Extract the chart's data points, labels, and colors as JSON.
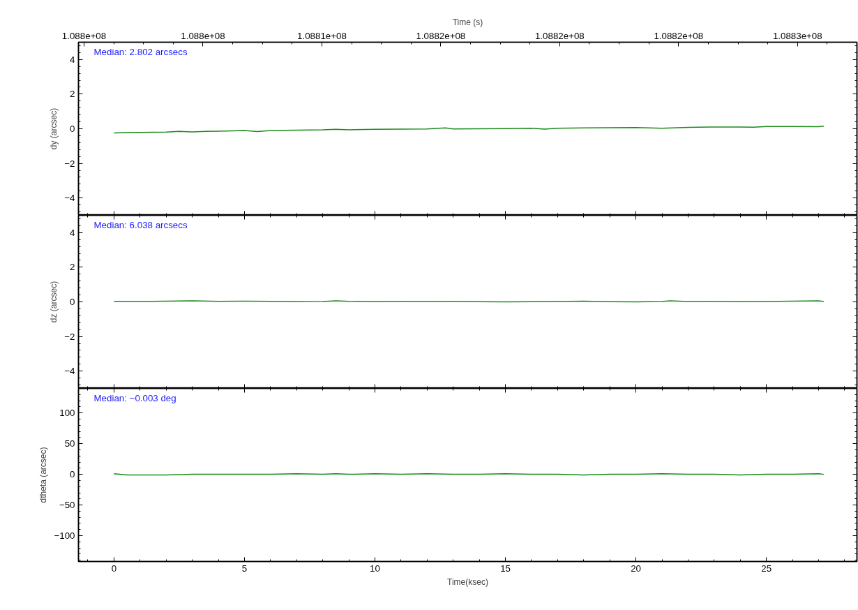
{
  "chart_data": [
    {
      "type": "line",
      "ylabel": "dy (arcsec)",
      "x2label": "Time (s)",
      "annotations": [
        "Median: 2.802 arcsecs"
      ],
      "xlim": [
        -1.36,
        28.47
      ],
      "xticks": [
        0,
        5,
        10,
        15,
        20,
        25
      ],
      "ylim": [
        -5,
        5
      ],
      "yticks": [
        -4,
        -2,
        0,
        2,
        4
      ],
      "x2lim": [
        108799765,
        108832500
      ],
      "x2ticks": [
        {
          "value": 108800000,
          "label": "1.088e+08"
        },
        {
          "value": 108805000,
          "label": "1.088e+08"
        },
        {
          "value": 108810000,
          "label": "1.0881e+08"
        },
        {
          "value": 108815000,
          "label": "1.0882e+08"
        },
        {
          "value": 108820000,
          "label": "1.0882e+08"
        },
        {
          "value": 108825000,
          "label": "1.0882e+08"
        },
        {
          "value": 108830000,
          "label": "1.0883e+08"
        }
      ],
      "tick_labels": "y",
      "grid": false,
      "marker": "none",
      "line_style": "solid",
      "x": [
        0,
        0.5,
        1,
        1.5,
        2,
        2.5,
        3,
        3.5,
        4,
        4.5,
        5,
        5.5,
        6,
        7,
        8,
        8.5,
        9,
        10,
        11,
        12,
        12.7,
        13,
        14,
        15,
        16,
        16.5,
        17,
        18,
        19,
        20,
        21,
        22,
        23,
        24,
        24.5,
        25,
        26,
        27,
        27.2
      ],
      "series": [
        {
          "color": "#1a8a1a",
          "values": [
            -0.24,
            -0.22,
            -0.21,
            -0.2,
            -0.19,
            -0.15,
            -0.18,
            -0.15,
            -0.14,
            -0.12,
            -0.1,
            -0.16,
            -0.1,
            -0.08,
            -0.06,
            -0.03,
            -0.06,
            -0.03,
            -0.02,
            -0.01,
            0.05,
            -0.01,
            0.0,
            0.01,
            0.03,
            -0.02,
            0.03,
            0.05,
            0.06,
            0.07,
            0.03,
            0.08,
            0.1,
            0.1,
            0.09,
            0.13,
            0.13,
            0.12,
            0.15
          ]
        }
      ]
    },
    {
      "type": "line",
      "ylabel": "dz (arcsec)",
      "annotations": [
        "Median: 6.038 arcsecs"
      ],
      "xlim": [
        -1.36,
        28.47
      ],
      "xticks": [
        0,
        5,
        10,
        15,
        20,
        25
      ],
      "ylim": [
        -5,
        5
      ],
      "yticks": [
        -4,
        -2,
        0,
        2,
        4
      ],
      "tick_labels": "y",
      "grid": false,
      "marker": "none",
      "line_style": "solid",
      "x": [
        0,
        1,
        2,
        3,
        4,
        5,
        6,
        7,
        8,
        8.5,
        9,
        10,
        11,
        12,
        13,
        14,
        15,
        16,
        17,
        18,
        19,
        20,
        21,
        21.3,
        22,
        23,
        24,
        25,
        26,
        27,
        27.2
      ],
      "series": [
        {
          "color": "#1a8a1a",
          "values": [
            0.02,
            0.02,
            0.04,
            0.06,
            0.03,
            0.04,
            0.03,
            0.01,
            0.02,
            0.06,
            0.03,
            0.01,
            0.03,
            0.02,
            0.03,
            0.01,
            0.0,
            0.01,
            0.02,
            0.04,
            0.01,
            0.0,
            0.02,
            0.06,
            0.02,
            0.03,
            0.01,
            0.02,
            0.04,
            0.06,
            0.02
          ]
        }
      ]
    },
    {
      "type": "line",
      "ylabel": "dtheta (arcsec)",
      "xlabel": "Time(ksec)",
      "annotations": [
        "Median: −0.003 deg"
      ],
      "xlim": [
        -1.36,
        28.47
      ],
      "xticks": [
        0,
        5,
        10,
        15,
        20,
        25
      ],
      "ylim": [
        -142,
        140
      ],
      "yticks": [
        -100,
        -50,
        0,
        50,
        100
      ],
      "grid": false,
      "marker": "none",
      "line_style": "solid",
      "x": [
        0,
        0.5,
        1,
        2,
        3,
        4,
        5,
        6,
        7,
        8,
        8.5,
        9,
        10,
        11,
        12,
        13,
        14,
        15,
        16,
        17,
        18,
        19,
        20,
        21,
        22,
        23,
        24,
        25,
        26,
        27,
        27.2
      ],
      "series": [
        {
          "color": "#1a8a1a",
          "values": [
            1,
            -1,
            -1,
            -1,
            0,
            0,
            0,
            0,
            1,
            0,
            1,
            0,
            1,
            0,
            1,
            0,
            0,
            1,
            0,
            0,
            -1,
            0,
            0,
            1,
            0,
            0,
            -1,
            0,
            0,
            1,
            0
          ]
        }
      ]
    }
  ]
}
